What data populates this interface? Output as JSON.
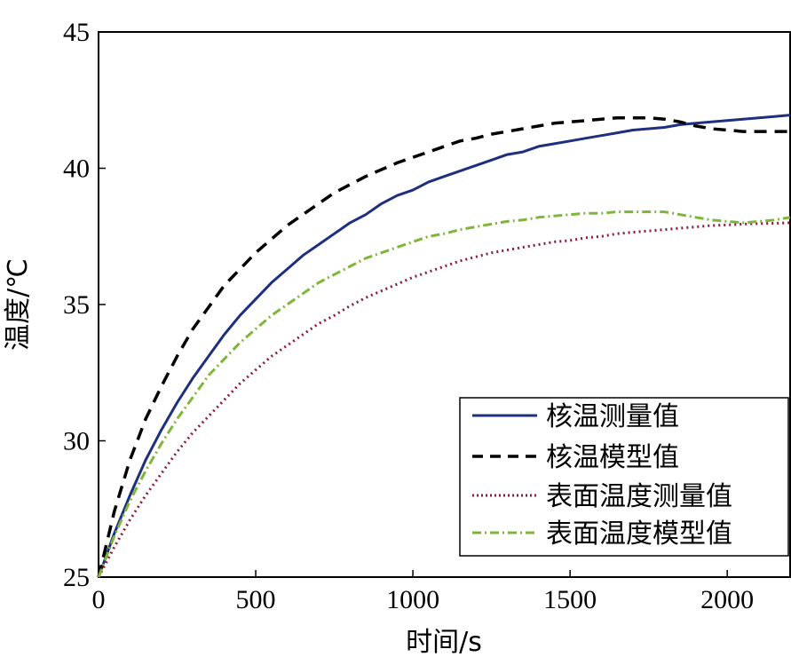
{
  "chart_data": {
    "type": "line",
    "title": "",
    "xlabel": "时间/s",
    "ylabel": "温度/℃",
    "xlim": [
      0,
      2200
    ],
    "ylim": [
      25,
      45
    ],
    "xticks": [
      "0",
      "500",
      "1000",
      "1500",
      "2000"
    ],
    "yticks": [
      "25",
      "30",
      "35",
      "40",
      "45"
    ],
    "legend_position": "bottom-right",
    "series": [
      {
        "name": "核温测量值",
        "style": "solid",
        "color": "#1f2f80",
        "x": [
          0,
          50,
          100,
          150,
          200,
          250,
          300,
          350,
          400,
          450,
          500,
          550,
          600,
          650,
          700,
          750,
          800,
          850,
          900,
          950,
          1000,
          1050,
          1100,
          1150,
          1200,
          1250,
          1300,
          1350,
          1400,
          1450,
          1500,
          1550,
          1600,
          1650,
          1700,
          1750,
          1800,
          1850,
          1900,
          1950,
          2000,
          2050,
          2100,
          2150,
          2200
        ],
        "values": [
          25.0,
          26.6,
          28.0,
          29.3,
          30.4,
          31.4,
          32.3,
          33.1,
          33.9,
          34.6,
          35.2,
          35.8,
          36.3,
          36.8,
          37.2,
          37.6,
          38.0,
          38.3,
          38.7,
          39.0,
          39.2,
          39.5,
          39.7,
          39.9,
          40.1,
          40.3,
          40.5,
          40.6,
          40.8,
          40.9,
          41.0,
          41.1,
          41.2,
          41.3,
          41.4,
          41.45,
          41.5,
          41.6,
          41.65,
          41.7,
          41.75,
          41.8,
          41.85,
          41.9,
          41.95
        ]
      },
      {
        "name": "核温模型值",
        "style": "dashed",
        "color": "#000000",
        "x": [
          0,
          50,
          100,
          150,
          200,
          250,
          300,
          350,
          400,
          450,
          500,
          550,
          600,
          650,
          700,
          750,
          800,
          850,
          900,
          950,
          1000,
          1050,
          1100,
          1150,
          1200,
          1250,
          1300,
          1350,
          1400,
          1450,
          1500,
          1550,
          1600,
          1650,
          1700,
          1750,
          1800,
          1850,
          1900,
          1950,
          2000,
          2050,
          2100,
          2150,
          2200
        ],
        "values": [
          25.0,
          27.4,
          29.3,
          30.8,
          32.0,
          33.1,
          34.1,
          34.9,
          35.7,
          36.3,
          36.9,
          37.4,
          37.9,
          38.3,
          38.7,
          39.1,
          39.4,
          39.7,
          39.95,
          40.2,
          40.4,
          40.6,
          40.8,
          41.0,
          41.1,
          41.25,
          41.35,
          41.45,
          41.55,
          41.65,
          41.7,
          41.75,
          41.8,
          41.85,
          41.85,
          41.85,
          41.8,
          41.7,
          41.55,
          41.45,
          41.4,
          41.35,
          41.35,
          41.35,
          41.35
        ]
      },
      {
        "name": "表面温度测量值",
        "style": "dotted",
        "color": "#8a1c3c",
        "x": [
          0,
          50,
          100,
          150,
          200,
          250,
          300,
          350,
          400,
          450,
          500,
          550,
          600,
          650,
          700,
          750,
          800,
          850,
          900,
          950,
          1000,
          1050,
          1100,
          1150,
          1200,
          1250,
          1300,
          1350,
          1400,
          1450,
          1500,
          1550,
          1600,
          1650,
          1700,
          1750,
          1800,
          1850,
          1900,
          1950,
          2000,
          2050,
          2100,
          2150,
          2200
        ],
        "values": [
          25.0,
          26.1,
          27.1,
          28.0,
          28.8,
          29.6,
          30.3,
          30.9,
          31.5,
          32.1,
          32.6,
          33.1,
          33.5,
          33.9,
          34.3,
          34.6,
          34.95,
          35.25,
          35.5,
          35.75,
          36.0,
          36.2,
          36.4,
          36.6,
          36.75,
          36.9,
          37.0,
          37.1,
          37.2,
          37.3,
          37.35,
          37.45,
          37.5,
          37.6,
          37.65,
          37.7,
          37.75,
          37.8,
          37.85,
          37.9,
          37.92,
          37.95,
          37.97,
          37.98,
          38.0
        ]
      },
      {
        "name": "表面温度模型值",
        "style": "dashdot",
        "color": "#7fb53a",
        "x": [
          0,
          50,
          100,
          150,
          200,
          250,
          300,
          350,
          400,
          450,
          500,
          550,
          600,
          650,
          700,
          750,
          800,
          850,
          900,
          950,
          1000,
          1050,
          1100,
          1150,
          1200,
          1250,
          1300,
          1350,
          1400,
          1450,
          1500,
          1550,
          1600,
          1650,
          1700,
          1750,
          1800,
          1850,
          1900,
          1950,
          2000,
          2050,
          2100,
          2150,
          2200
        ],
        "values": [
          25.0,
          26.5,
          27.8,
          28.9,
          29.9,
          30.8,
          31.6,
          32.4,
          33.0,
          33.6,
          34.1,
          34.6,
          35.0,
          35.4,
          35.8,
          36.1,
          36.4,
          36.7,
          36.9,
          37.1,
          37.3,
          37.5,
          37.6,
          37.75,
          37.85,
          37.95,
          38.05,
          38.1,
          38.2,
          38.25,
          38.3,
          38.35,
          38.35,
          38.4,
          38.4,
          38.4,
          38.4,
          38.3,
          38.2,
          38.1,
          38.05,
          38.0,
          38.05,
          38.1,
          38.2
        ]
      }
    ]
  }
}
